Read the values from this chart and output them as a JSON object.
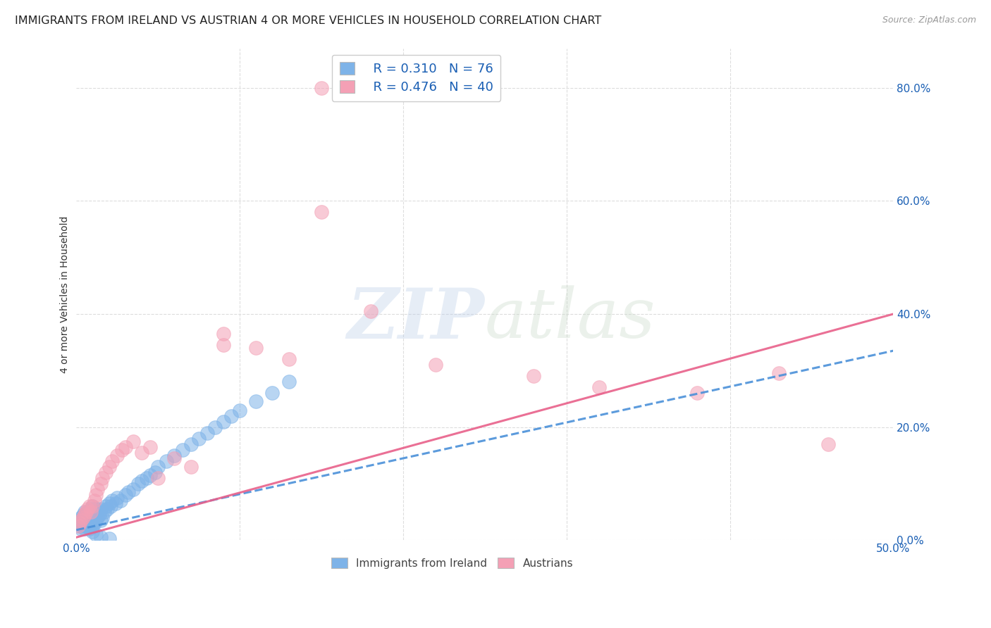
{
  "title": "IMMIGRANTS FROM IRELAND VS AUSTRIAN 4 OR MORE VEHICLES IN HOUSEHOLD CORRELATION CHART",
  "source": "Source: ZipAtlas.com",
  "ylabel": "4 or more Vehicles in Household",
  "xlim": [
    0.0,
    0.5
  ],
  "ylim": [
    0.0,
    0.87
  ],
  "ireland_color": "#7eb3e8",
  "austria_color": "#f4a0b5",
  "ireland_line_color": "#4a90d9",
  "austria_line_color": "#e8608a",
  "ireland_R": 0.31,
  "ireland_N": 76,
  "austria_R": 0.476,
  "austria_N": 40,
  "background_color": "#ffffff",
  "grid_color": "#dddddd",
  "legend_text_color": "#1a5fb4",
  "ireland_scatter_x": [
    0.001,
    0.002,
    0.002,
    0.003,
    0.003,
    0.003,
    0.004,
    0.004,
    0.004,
    0.005,
    0.005,
    0.005,
    0.005,
    0.006,
    0.006,
    0.006,
    0.007,
    0.007,
    0.007,
    0.008,
    0.008,
    0.008,
    0.009,
    0.009,
    0.009,
    0.01,
    0.01,
    0.01,
    0.01,
    0.011,
    0.011,
    0.011,
    0.012,
    0.012,
    0.013,
    0.013,
    0.014,
    0.015,
    0.015,
    0.016,
    0.017,
    0.018,
    0.019,
    0.02,
    0.021,
    0.022,
    0.024,
    0.025,
    0.027,
    0.03,
    0.032,
    0.035,
    0.038,
    0.04,
    0.043,
    0.045,
    0.048,
    0.05,
    0.055,
    0.06,
    0.065,
    0.07,
    0.075,
    0.08,
    0.085,
    0.09,
    0.095,
    0.1,
    0.11,
    0.12,
    0.008,
    0.01,
    0.012,
    0.015,
    0.02,
    0.13
  ],
  "ireland_scatter_y": [
    0.03,
    0.025,
    0.035,
    0.02,
    0.03,
    0.04,
    0.025,
    0.035,
    0.045,
    0.02,
    0.03,
    0.04,
    0.05,
    0.025,
    0.035,
    0.045,
    0.03,
    0.04,
    0.05,
    0.025,
    0.035,
    0.045,
    0.03,
    0.04,
    0.055,
    0.025,
    0.035,
    0.045,
    0.06,
    0.03,
    0.04,
    0.055,
    0.035,
    0.05,
    0.04,
    0.055,
    0.045,
    0.035,
    0.055,
    0.04,
    0.05,
    0.06,
    0.055,
    0.065,
    0.06,
    0.07,
    0.065,
    0.075,
    0.07,
    0.08,
    0.085,
    0.09,
    0.1,
    0.105,
    0.11,
    0.115,
    0.12,
    0.13,
    0.14,
    0.15,
    0.16,
    0.17,
    0.18,
    0.19,
    0.2,
    0.21,
    0.22,
    0.23,
    0.245,
    0.26,
    0.02,
    0.015,
    0.01,
    0.005,
    0.003,
    0.28
  ],
  "austria_scatter_x": [
    0.001,
    0.002,
    0.003,
    0.004,
    0.005,
    0.006,
    0.007,
    0.008,
    0.009,
    0.01,
    0.011,
    0.012,
    0.013,
    0.015,
    0.016,
    0.018,
    0.02,
    0.022,
    0.025,
    0.028,
    0.03,
    0.035,
    0.04,
    0.045,
    0.05,
    0.06,
    0.07,
    0.09,
    0.11,
    0.13,
    0.15,
    0.18,
    0.22,
    0.28,
    0.32,
    0.38,
    0.43,
    0.46,
    0.09,
    0.15
  ],
  "austria_scatter_y": [
    0.025,
    0.03,
    0.035,
    0.04,
    0.045,
    0.05,
    0.055,
    0.06,
    0.05,
    0.06,
    0.07,
    0.08,
    0.09,
    0.1,
    0.11,
    0.12,
    0.13,
    0.14,
    0.15,
    0.16,
    0.165,
    0.175,
    0.155,
    0.165,
    0.11,
    0.145,
    0.13,
    0.365,
    0.34,
    0.32,
    0.58,
    0.405,
    0.31,
    0.29,
    0.27,
    0.26,
    0.295,
    0.17,
    0.345,
    0.8
  ],
  "ireland_line_x": [
    0.0,
    0.5
  ],
  "ireland_line_y": [
    0.018,
    0.335
  ],
  "austria_line_x": [
    0.0,
    0.5
  ],
  "austria_line_y": [
    0.005,
    0.4
  ],
  "watermark_zip": "ZIP",
  "watermark_atlas": "atlas",
  "title_fontsize": 11.5,
  "axis_label_fontsize": 10,
  "tick_fontsize": 11
}
